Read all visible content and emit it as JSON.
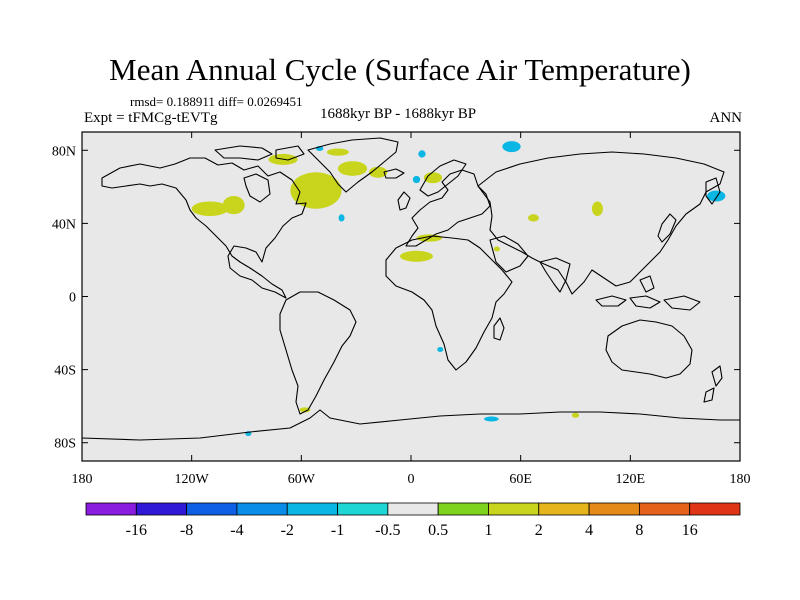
{
  "title": "Mean Annual Cycle (Surface Air Temperature)",
  "stats": "rmsd= 0.188911 diff= 0.0269451",
  "experiment": "Expt = tFMCg-tEVTg",
  "period": "1688kyr BP - 1688kyr BP",
  "season": "ANN",
  "chart_data": {
    "type": "heatmap",
    "title": "Mean Annual Cycle (Surface Air Temperature)",
    "lon_range": [
      -180,
      180
    ],
    "lat_range": [
      -90,
      90
    ],
    "lon_ticks": [
      {
        "value": -180,
        "label": "180"
      },
      {
        "value": -120,
        "label": "120W"
      },
      {
        "value": -60,
        "label": "60W"
      },
      {
        "value": 0,
        "label": "0"
      },
      {
        "value": 60,
        "label": "60E"
      },
      {
        "value": 120,
        "label": "120E"
      },
      {
        "value": 180,
        "label": "180"
      }
    ],
    "lat_ticks": [
      {
        "value": 80,
        "label": "80N"
      },
      {
        "value": 40,
        "label": "40N"
      },
      {
        "value": 0,
        "label": "0"
      },
      {
        "value": -40,
        "label": "40S"
      },
      {
        "value": -80,
        "label": "80S"
      }
    ],
    "colorbar": {
      "labels": [
        "-16",
        "-8",
        "-4",
        "-2",
        "-1",
        "-0.5",
        "0.5",
        "1",
        "2",
        "4",
        "8",
        "16"
      ],
      "colors": [
        "#8a1ce0",
        "#3019d6",
        "#0f5ee6",
        "#0a8de8",
        "#0ab6e3",
        "#1ed6d4",
        "#e8e8e8",
        "#7ed31e",
        "#c9d51c",
        "#e6b41c",
        "#e58a18",
        "#e5621a",
        "#df3516"
      ]
    },
    "anomaly_regions": [
      {
        "name": "greenland-east",
        "level": "1",
        "lon": -32,
        "lat": 70,
        "dlon": 8,
        "dlat": 4
      },
      {
        "name": "labrador-sea",
        "level": "2",
        "lon": -55,
        "lat": 60,
        "dlon": 10,
        "dlat": 7
      },
      {
        "name": "labrador-sea-edge",
        "level": "1",
        "lon": -52,
        "lat": 58,
        "dlon": 14,
        "dlat": 10
      },
      {
        "name": "hudson-north",
        "level": "1",
        "lon": -70,
        "lat": 75,
        "dlon": 8,
        "dlat": 3
      },
      {
        "name": "greenland-north",
        "level": "1",
        "lon": -40,
        "lat": 79,
        "dlon": 6,
        "dlat": 2
      },
      {
        "name": "north-america-west",
        "level": "1",
        "lon": -110,
        "lat": 48,
        "dlon": 10,
        "dlat": 4
      },
      {
        "name": "north-america-central",
        "level": "1",
        "lon": -97,
        "lat": 50,
        "dlon": 6,
        "dlat": 5
      },
      {
        "name": "iceland",
        "level": "1",
        "lon": -18,
        "lat": 68,
        "dlon": 5,
        "dlat": 3
      },
      {
        "name": "scandinavia",
        "level": "1",
        "lon": 12,
        "lat": 65,
        "dlon": 5,
        "dlat": 3
      },
      {
        "name": "central-asia",
        "level": "1",
        "lon": 67,
        "lat": 43,
        "dlon": 3,
        "dlat": 2
      },
      {
        "name": "east-asia",
        "level": "1",
        "lon": 102,
        "lat": 48,
        "dlon": 3,
        "dlat": 4
      },
      {
        "name": "sahara-east",
        "level": "1",
        "lon": 10,
        "lat": 32,
        "dlon": 7,
        "dlat": 2
      },
      {
        "name": "sahel",
        "level": "1",
        "lon": 3,
        "lat": 22,
        "dlon": 9,
        "dlat": 3
      },
      {
        "name": "arabia",
        "level": "1",
        "lon": 47,
        "lat": 26,
        "dlon": 1,
        "dlat": 1
      },
      {
        "name": "southern-ocean-weddell",
        "level": "1",
        "lon": -58,
        "lat": -62,
        "dlon": 3,
        "dlat": 1
      },
      {
        "name": "southern-ocean-indian",
        "level": "1",
        "lon": 90,
        "lat": -65,
        "dlon": 2,
        "dlat": 1
      },
      {
        "name": "barents-cool",
        "level": "-1",
        "lon": 55,
        "lat": 82,
        "dlon": 5,
        "dlat": 3
      },
      {
        "name": "kamchatka-cool",
        "level": "-1",
        "lon": 167,
        "lat": 55,
        "dlon": 5,
        "dlat": 3
      },
      {
        "name": "svalbard-cool",
        "level": "-1",
        "lon": 6,
        "lat": 78,
        "dlon": 2,
        "dlat": 2
      },
      {
        "name": "norway-cool",
        "level": "-1",
        "lon": 3,
        "lat": 64,
        "dlon": 2,
        "dlat": 2
      },
      {
        "name": "atlantic-cool",
        "level": "-1",
        "lon": -38,
        "lat": 43,
        "dlon": 1,
        "dlat": 2
      },
      {
        "name": "antarctic-indian-cool",
        "level": "-1",
        "lon": 44,
        "lat": -67,
        "dlon": 4,
        "dlat": 1
      },
      {
        "name": "antarctic-pacific-cool",
        "level": "-1",
        "lon": -89,
        "lat": -75,
        "dlon": 1,
        "dlat": 1
      },
      {
        "name": "southern-africa-cool",
        "level": "-1",
        "lon": 16,
        "lat": -29,
        "dlon": 1,
        "dlat": 1
      },
      {
        "name": "alaska-cool",
        "level": "-1",
        "lon": -50,
        "lat": 81,
        "dlon": 2,
        "dlat": 1
      }
    ]
  }
}
